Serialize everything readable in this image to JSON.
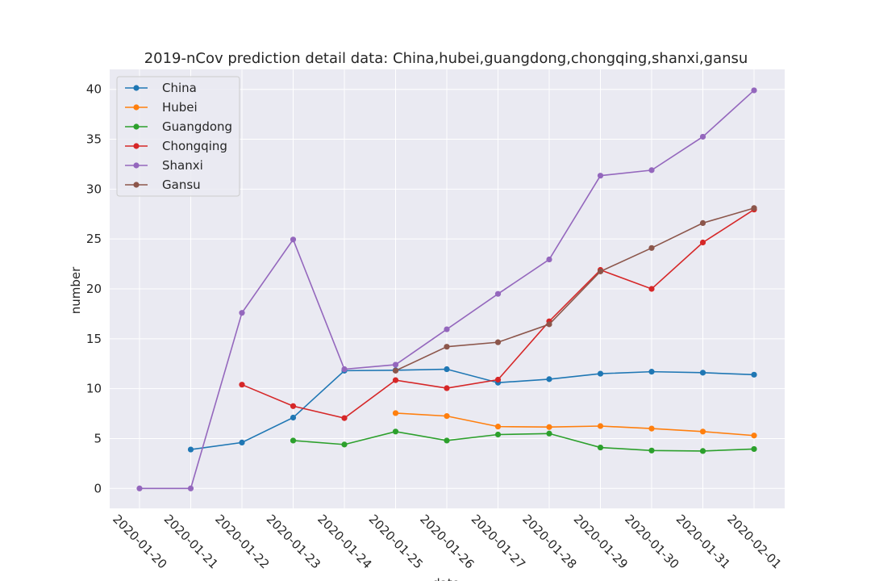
{
  "chart_data": {
    "type": "line",
    "title": "2019-nCov prediction detail data: China,hubei,guangdong,chongqing,shanxi,gansu",
    "xlabel": "date",
    "ylabel": "number",
    "ylim": [
      -2,
      42
    ],
    "yticks": [
      0,
      5,
      10,
      15,
      20,
      25,
      30,
      35,
      40
    ],
    "grid": true,
    "legend_position": "top-left",
    "x": [
      "2020-01-20",
      "2020-01-21",
      "2020-01-22",
      "2020-01-23",
      "2020-01-24",
      "2020-01-25",
      "2020-01-26",
      "2020-01-27",
      "2020-01-28",
      "2020-01-29",
      "2020-01-30",
      "2020-01-31",
      "2020-02-01"
    ],
    "series": [
      {
        "name": "China",
        "color": "#1f77b4",
        "values": [
          null,
          3.9,
          4.6,
          7.1,
          11.8,
          11.85,
          11.95,
          10.6,
          10.95,
          11.5,
          11.7,
          11.6,
          11.4
        ]
      },
      {
        "name": "Hubei",
        "color": "#ff7f0e",
        "values": [
          null,
          null,
          null,
          null,
          null,
          7.55,
          7.25,
          6.2,
          6.15,
          6.25,
          6.0,
          5.7,
          5.3
        ]
      },
      {
        "name": "Guangdong",
        "color": "#2ca02c",
        "values": [
          null,
          null,
          null,
          4.8,
          4.4,
          5.7,
          4.8,
          5.4,
          5.5,
          4.1,
          3.8,
          3.75,
          3.95
        ]
      },
      {
        "name": "Chongqing",
        "color": "#d62728",
        "values": [
          null,
          null,
          10.4,
          8.25,
          7.05,
          10.85,
          10.05,
          10.9,
          16.75,
          21.9,
          20.0,
          24.65,
          27.95
        ]
      },
      {
        "name": "Shanxi",
        "color": "#9467bd",
        "values": [
          0.0,
          0.0,
          17.6,
          24.95,
          11.95,
          12.4,
          15.95,
          19.5,
          22.95,
          31.35,
          31.9,
          35.25,
          39.9
        ]
      },
      {
        "name": "Gansu",
        "color": "#8c564b",
        "values": [
          null,
          null,
          null,
          null,
          null,
          11.8,
          14.2,
          14.65,
          16.45,
          21.75,
          24.1,
          26.6,
          28.1
        ]
      }
    ]
  }
}
